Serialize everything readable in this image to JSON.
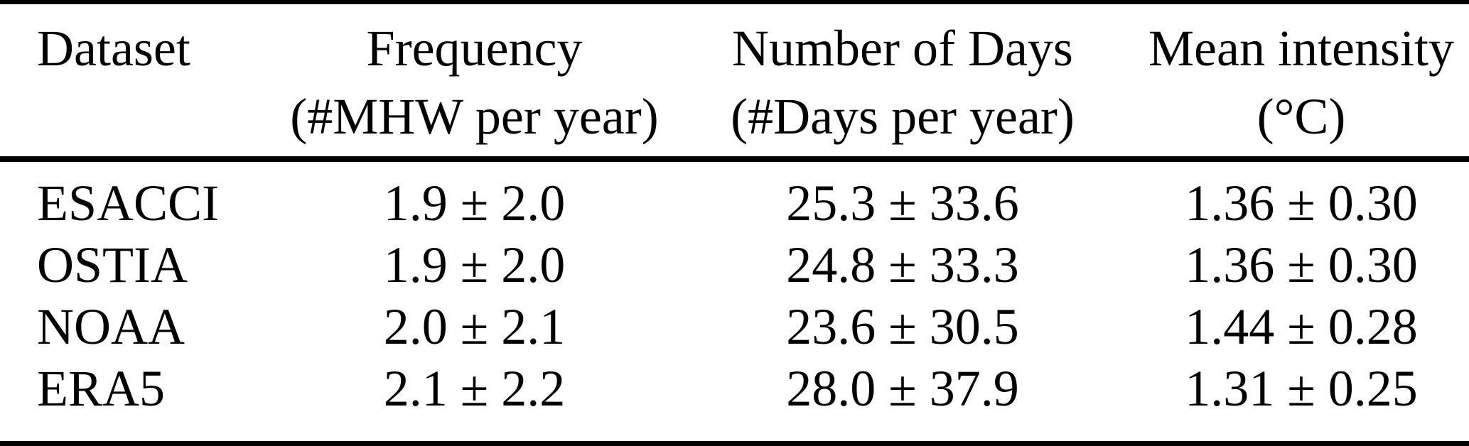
{
  "table": {
    "columns": [
      {
        "label_line1": "Dataset",
        "label_line2": ""
      },
      {
        "label_line1": "Frequency",
        "label_line2": "(#MHW per year)"
      },
      {
        "label_line1": "Number of Days",
        "label_line2": "(#Days per year)"
      },
      {
        "label_line1": "Mean intensity",
        "label_line2": "(°C)"
      }
    ],
    "rows": [
      {
        "dataset": "ESACCI",
        "frequency": "1.9 ± 2.0",
        "days": "25.3 ± 33.6",
        "intensity": "1.36 ± 0.30"
      },
      {
        "dataset": "OSTIA",
        "frequency": "1.9 ± 2.0",
        "days": "24.8 ± 33.3",
        "intensity": "1.36 ± 0.30"
      },
      {
        "dataset": "NOAA",
        "frequency": "2.0 ± 2.1",
        "days": "23.6 ± 30.5",
        "intensity": "1.44 ± 0.28"
      },
      {
        "dataset": "ERA5",
        "frequency": "2.1 ± 2.2",
        "days": "28.0 ± 37.9",
        "intensity": "1.31 ± 0.25"
      }
    ],
    "colors": {
      "text": "#000000",
      "background": "#ffffff",
      "rule": "#000000"
    }
  }
}
